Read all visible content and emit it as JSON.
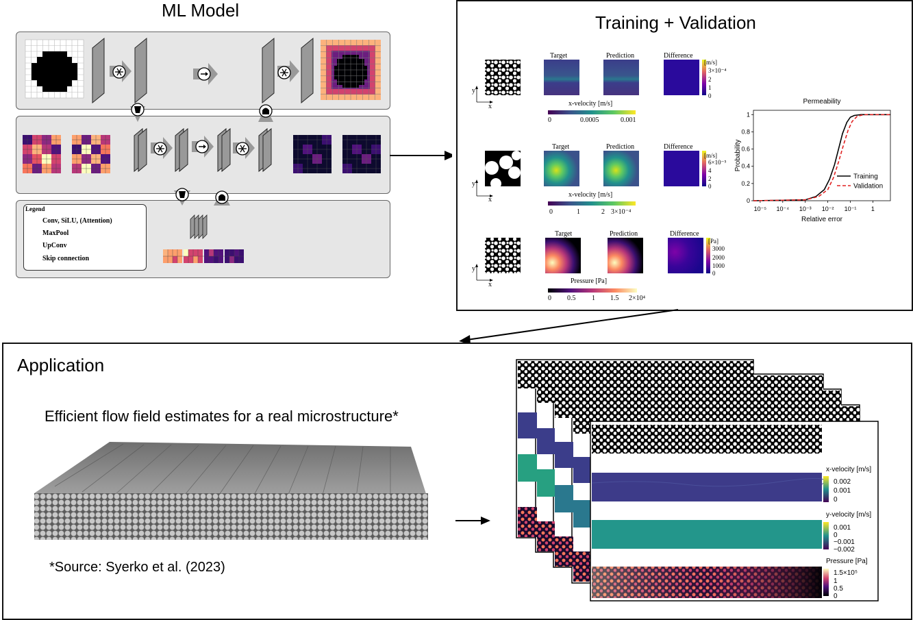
{
  "ml_model": {
    "title": "ML Model",
    "legend": {
      "heading": "Legend",
      "items": [
        {
          "icon": "asterisk-circle-icon",
          "label": "Conv, SiLU, (Attention)"
        },
        {
          "icon": "maxpool-icon",
          "label": "MaxPool"
        },
        {
          "icon": "upconv-icon",
          "label": "UpConv"
        },
        {
          "icon": "arrow-right-circle-icon",
          "label": "Skip connection"
        }
      ]
    }
  },
  "training": {
    "title": "Training + Validation",
    "rows": [
      {
        "target_label": "Target",
        "prediction_label": "Prediction",
        "difference_label": "Difference",
        "diff_unit": "[m/s]",
        "diff_ticks": [
          "3×10⁻⁴",
          "2",
          "1",
          "0"
        ],
        "colorbar_label": "x-velocity [m/s]",
        "colorbar_ticks": [
          "0",
          "0.0005",
          "0.001"
        ]
      },
      {
        "target_label": "Target",
        "prediction_label": "Prediction",
        "difference_label": "Difference",
        "diff_unit": "[m/s]",
        "diff_ticks": [
          "6×10⁻⁵",
          "4",
          "2",
          "0"
        ],
        "colorbar_label": "x-velocity [m/s]",
        "colorbar_ticks": [
          "0",
          "1",
          "2",
          "3×10⁻⁴"
        ]
      },
      {
        "target_label": "Target",
        "prediction_label": "Prediction",
        "difference_label": "Difference",
        "diff_unit": "[Pa]",
        "diff_ticks": [
          "3000",
          "2000",
          "1000",
          "0"
        ],
        "colorbar_label": "Pressure [Pa]",
        "colorbar_ticks": [
          "0",
          "0.5",
          "1",
          "1.5",
          "2×10⁴"
        ]
      }
    ],
    "axis_y": "y",
    "axis_x": "x"
  },
  "chart_data": {
    "type": "line",
    "title": "Permeability",
    "xlabel": "Relative error",
    "ylabel": "Probability",
    "x_scale": "log",
    "xlim": [
      5e-06,
      6
    ],
    "ylim": [
      0,
      1.05
    ],
    "x_tick_labels": [
      "10⁻⁵",
      "10⁻⁴",
      "10⁻³",
      "10⁻²",
      "10⁻¹",
      "1"
    ],
    "y_tick_labels": [
      "0",
      "0.2",
      "0.4",
      "0.6",
      "0.8",
      "1"
    ],
    "legend_position": "bottom-right",
    "series": [
      {
        "name": "Training",
        "color": "#000000",
        "dash": "solid",
        "x": [
          5e-06,
          0.001,
          0.003,
          0.007,
          0.012,
          0.02,
          0.03,
          0.045,
          0.07,
          0.1,
          0.15,
          0.3,
          6
        ],
        "y": [
          0,
          0.01,
          0.05,
          0.13,
          0.25,
          0.42,
          0.6,
          0.78,
          0.91,
          0.97,
          0.99,
          1.0,
          1.0
        ]
      },
      {
        "name": "Validation",
        "color": "#e02020",
        "dash": "dashed",
        "x": [
          5e-06,
          0.001,
          0.004,
          0.01,
          0.018,
          0.03,
          0.05,
          0.08,
          0.12,
          0.2,
          0.4,
          6
        ],
        "y": [
          0,
          0.01,
          0.05,
          0.13,
          0.27,
          0.45,
          0.65,
          0.82,
          0.92,
          0.98,
          1.0,
          1.0
        ]
      }
    ]
  },
  "application": {
    "title": "Application",
    "subtitle": "Efficient flow field estimates for a real microstructure*",
    "source": "*Source: Syerko et al. (2023)",
    "colorbars": [
      {
        "label": "x-velocity [m/s]",
        "ticks": [
          "0.002",
          "0.001",
          "0"
        ]
      },
      {
        "label": "y-velocity [m/s]",
        "ticks": [
          "0.001",
          "0",
          "−0.001",
          "−0.002"
        ]
      },
      {
        "label": "Pressure [Pa]",
        "ticks": [
          "1.5×10⁵",
          "1",
          "0.5",
          "0"
        ]
      }
    ]
  },
  "colors": {
    "magma_dark": "#000004",
    "magma_purple": "#51127c",
    "magma_pink": "#d3436e",
    "magma_orange": "#fd9f6c",
    "magma_light": "#fcfdbf",
    "viridis_dark": "#440154",
    "viridis_teal": "#21918c",
    "viridis_yellow": "#fde725",
    "plasma_dark": "#0d0887",
    "plasma_yellow": "#f0f921"
  }
}
